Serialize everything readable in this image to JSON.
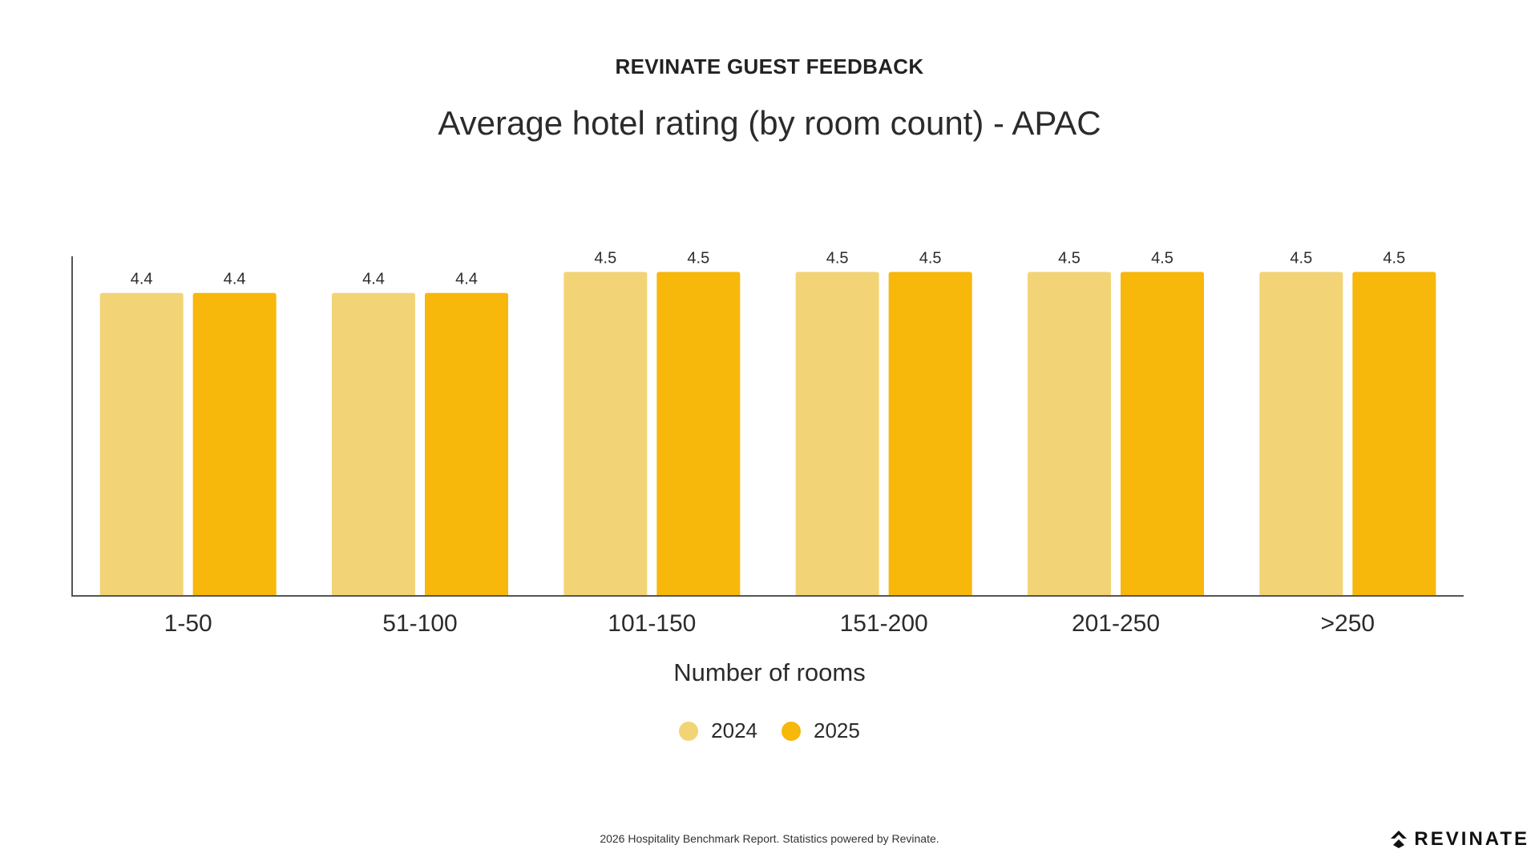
{
  "header": {
    "eyebrow": "REVINATE GUEST FEEDBACK",
    "title": "Average hotel rating (by room count) - APAC"
  },
  "chart_data": {
    "type": "bar",
    "categories": [
      "1-50",
      "51-100",
      "101-150",
      "151-200",
      "201-250",
      ">250"
    ],
    "series": [
      {
        "name": "2024",
        "values": [
          4.4,
          4.4,
          4.5,
          4.5,
          4.5,
          4.5
        ],
        "color": "#F2D477"
      },
      {
        "name": "2025",
        "values": [
          4.4,
          4.4,
          4.5,
          4.5,
          4.5,
          4.5
        ],
        "color": "#F7B70B"
      }
    ],
    "title": "Average hotel rating (by room count) - APAC",
    "xlabel": "Number of rooms",
    "ylabel": "",
    "data_labels": true,
    "grid": false,
    "legend_position": "bottom"
  },
  "legend": {
    "items": [
      {
        "label": "2024",
        "color": "#F2D477"
      },
      {
        "label": "2025",
        "color": "#F7B70B"
      }
    ]
  },
  "footer": {
    "note": "2026 Hospitality Benchmark Report. Statistics powered by Revinate.",
    "logo_text": "REVINATE"
  }
}
